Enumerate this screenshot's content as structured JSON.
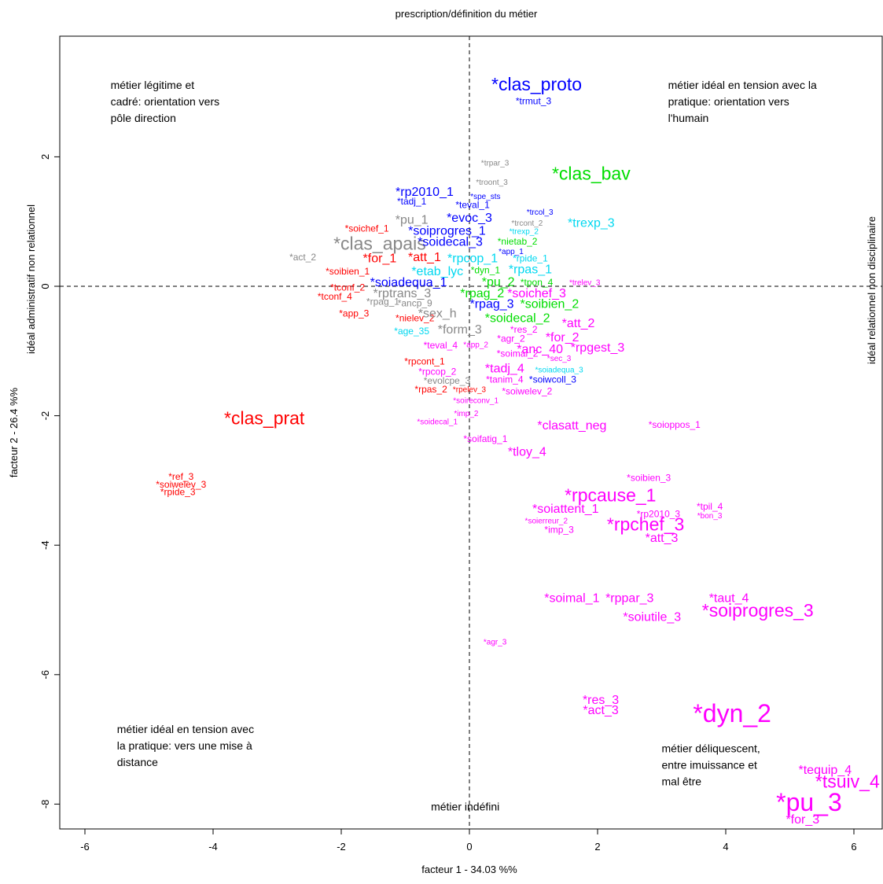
{
  "chart_data": {
    "type": "scatter",
    "title": "prescription/définition du métier",
    "xlabel": "facteur  1  - 34.03 %%",
    "ylabel": "facteur  2  - 26.4 %%",
    "right_label": "idéal relationnel non disciplinaire",
    "left_label": "idéal administratif non relationnel",
    "xlim": [
      -6.6,
      6.6
    ],
    "ylim": [
      -8.5,
      4.0
    ],
    "x_ticks": [
      -6,
      -4,
      -2,
      0,
      2,
      4,
      6
    ],
    "y_ticks": [
      -8,
      -6,
      -4,
      -2,
      0,
      2
    ],
    "x_tick_labels": [
      "-6",
      "-4",
      "-2",
      "0",
      "2",
      "4",
      "6"
    ],
    "y_tick_labels": [
      "-8",
      "-6",
      "-4",
      "-2",
      "0",
      "2"
    ],
    "grid": false,
    "colors": {
      "blue": "#0000ff",
      "green": "#00dd00",
      "gray": "#888888",
      "red": "#ff0000",
      "cyan": "#00d8f0",
      "magenta": "#ff00ff"
    },
    "annotations": [
      {
        "x": -5.6,
        "y": 3.05,
        "lines": [
          "métier légitime et",
          "cadré: orientation vers",
          "pôle direction"
        ]
      },
      {
        "x": 3.1,
        "y": 3.05,
        "lines": [
          "métier idéal en tension avec la",
          "pratique: orientation vers",
          "l'humain"
        ]
      },
      {
        "x": -5.5,
        "y": -6.9,
        "lines": [
          "métier idéal en tension avec",
          "la pratique: vers une mise à",
          "distance"
        ]
      },
      {
        "x": 3.0,
        "y": -7.2,
        "lines": [
          "métier déliquescent,",
          "entre imuissance et",
          "mal être"
        ]
      },
      {
        "x": -0.6,
        "y": -8.1,
        "lines": [
          "métier indéfini"
        ]
      }
    ],
    "points": [
      {
        "label": "*clas_proto",
        "x": 1.05,
        "y": 3.1,
        "size": 3,
        "color": "blue"
      },
      {
        "label": "*trmut_3",
        "x": 1.0,
        "y": 2.85,
        "size": 1,
        "color": "blue"
      },
      {
        "label": "*trpar_3",
        "x": 0.4,
        "y": 1.9,
        "size": 0,
        "color": "gray"
      },
      {
        "label": "*clas_bav",
        "x": 1.9,
        "y": 1.72,
        "size": 3,
        "color": "green"
      },
      {
        "label": "*troont_3",
        "x": 0.35,
        "y": 1.6,
        "size": 0,
        "color": "gray"
      },
      {
        "label": "*rp2010_1",
        "x": -0.7,
        "y": 1.45,
        "size": 2,
        "color": "blue"
      },
      {
        "label": "*spe_sts",
        "x": 0.25,
        "y": 1.38,
        "size": 0,
        "color": "blue"
      },
      {
        "label": "*tadj_1",
        "x": -0.9,
        "y": 1.3,
        "size": 1,
        "color": "blue"
      },
      {
        "label": "*teval_1",
        "x": 0.05,
        "y": 1.25,
        "size": 1,
        "color": "blue"
      },
      {
        "label": "*trcol_3",
        "x": 1.1,
        "y": 1.14,
        "size": 0,
        "color": "blue"
      },
      {
        "label": "*evoc_3",
        "x": 0.0,
        "y": 1.05,
        "size": 2,
        "color": "blue"
      },
      {
        "label": "*pu_1",
        "x": -0.9,
        "y": 1.02,
        "size": 2,
        "color": "gray"
      },
      {
        "label": "*trexp_3",
        "x": 1.9,
        "y": 0.97,
        "size": 2,
        "color": "cyan"
      },
      {
        "label": "*trcont_2",
        "x": 0.9,
        "y": 0.97,
        "size": 0,
        "color": "gray"
      },
      {
        "label": "*soichef_1",
        "x": -1.6,
        "y": 0.88,
        "size": 1,
        "color": "red"
      },
      {
        "label": "*soiprogres_1",
        "x": -0.35,
        "y": 0.85,
        "size": 2,
        "color": "blue"
      },
      {
        "label": "*trexp_2",
        "x": 0.85,
        "y": 0.84,
        "size": 0,
        "color": "cyan"
      },
      {
        "label": "*clas_apais",
        "x": -1.4,
        "y": 0.64,
        "size": 3,
        "color": "gray"
      },
      {
        "label": "*soidecal_3",
        "x": -0.3,
        "y": 0.68,
        "size": 2,
        "color": "blue"
      },
      {
        "label": "*nietab_2",
        "x": 0.75,
        "y": 0.68,
        "size": 1,
        "color": "green"
      },
      {
        "label": "*app_1",
        "x": 0.65,
        "y": 0.53,
        "size": 0,
        "color": "blue"
      },
      {
        "label": "*act_2",
        "x": -2.6,
        "y": 0.44,
        "size": 1,
        "color": "gray"
      },
      {
        "label": "*for_1",
        "x": -1.4,
        "y": 0.42,
        "size": 2,
        "color": "red"
      },
      {
        "label": "*att_1",
        "x": -0.7,
        "y": 0.44,
        "size": 2,
        "color": "red"
      },
      {
        "label": "*rpcop_1",
        "x": 0.05,
        "y": 0.42,
        "size": 2,
        "color": "cyan"
      },
      {
        "label": "*rpide_1",
        "x": 0.95,
        "y": 0.42,
        "size": 1,
        "color": "cyan"
      },
      {
        "label": "*rpas_1",
        "x": 0.95,
        "y": 0.25,
        "size": 2,
        "color": "cyan"
      },
      {
        "label": "*soibien_1",
        "x": -1.9,
        "y": 0.22,
        "size": 1,
        "color": "red"
      },
      {
        "label": "*etab_lyc",
        "x": -0.5,
        "y": 0.22,
        "size": 2,
        "color": "cyan"
      },
      {
        "label": "*dyn_1",
        "x": 0.25,
        "y": 0.24,
        "size": 1,
        "color": "green"
      },
      {
        "label": "*soiadequa_1",
        "x": -0.95,
        "y": 0.05,
        "size": 2,
        "color": "blue"
      },
      {
        "label": "*pu_2",
        "x": 0.45,
        "y": 0.06,
        "size": 2,
        "color": "green"
      },
      {
        "label": "*tpon_4",
        "x": 1.05,
        "y": 0.05,
        "size": 1,
        "color": "green"
      },
      {
        "label": "*trelev_3",
        "x": 1.8,
        "y": 0.05,
        "size": 0,
        "color": "magenta"
      },
      {
        "label": "*tconf_2",
        "x": -1.9,
        "y": -0.03,
        "size": 1,
        "color": "red"
      },
      {
        "label": "*rpag_2",
        "x": 0.2,
        "y": -0.12,
        "size": 2,
        "color": "green"
      },
      {
        "label": "*soichef_3",
        "x": 1.05,
        "y": -0.12,
        "size": 2,
        "color": "magenta"
      },
      {
        "label": "*tconf_4",
        "x": -2.1,
        "y": -0.17,
        "size": 1,
        "color": "red"
      },
      {
        "label": "*rptrans_3",
        "x": -1.05,
        "y": -0.12,
        "size": 2,
        "color": "gray"
      },
      {
        "label": "*rpag_1",
        "x": -1.35,
        "y": -0.25,
        "size": 1,
        "color": "gray"
      },
      {
        "label": "*ancp_9",
        "x": -0.85,
        "y": -0.27,
        "size": 1,
        "color": "gray"
      },
      {
        "label": "*rpag_3",
        "x": 0.35,
        "y": -0.28,
        "size": 2,
        "color": "blue"
      },
      {
        "label": "*soibien_2",
        "x": 1.25,
        "y": -0.28,
        "size": 2,
        "color": "green"
      },
      {
        "label": "*app_3",
        "x": -1.8,
        "y": -0.43,
        "size": 1,
        "color": "red"
      },
      {
        "label": "*nielev_2",
        "x": -0.85,
        "y": -0.5,
        "size": 1,
        "color": "red"
      },
      {
        "label": "*sex_h",
        "x": -0.5,
        "y": -0.43,
        "size": 2,
        "color": "gray"
      },
      {
        "label": "*soidecal_2",
        "x": 0.75,
        "y": -0.5,
        "size": 2,
        "color": "green"
      },
      {
        "label": "*att_2",
        "x": 1.7,
        "y": -0.58,
        "size": 2,
        "color": "magenta"
      },
      {
        "label": "*age_35",
        "x": -0.9,
        "y": -0.7,
        "size": 1,
        "color": "cyan"
      },
      {
        "label": "*form_3",
        "x": -0.15,
        "y": -0.68,
        "size": 2,
        "color": "gray"
      },
      {
        "label": "*res_2",
        "x": 0.85,
        "y": -0.68,
        "size": 1,
        "color": "magenta"
      },
      {
        "label": "*agr_2",
        "x": 0.65,
        "y": -0.82,
        "size": 1,
        "color": "magenta"
      },
      {
        "label": "*for_2",
        "x": 1.45,
        "y": -0.8,
        "size": 2,
        "color": "magenta"
      },
      {
        "label": "*teval_4",
        "x": -0.45,
        "y": -0.92,
        "size": 1,
        "color": "magenta"
      },
      {
        "label": "*app_2",
        "x": 0.1,
        "y": -0.91,
        "size": 0,
        "color": "magenta"
      },
      {
        "label": "*anc_40",
        "x": 1.1,
        "y": -0.98,
        "size": 2,
        "color": "magenta"
      },
      {
        "label": "*rpgest_3",
        "x": 2.0,
        "y": -0.96,
        "size": 2,
        "color": "magenta"
      },
      {
        "label": "*soimal_2",
        "x": 0.75,
        "y": -1.05,
        "size": 1,
        "color": "magenta"
      },
      {
        "label": "*sec_3",
        "x": 1.4,
        "y": -1.12,
        "size": 0,
        "color": "magenta"
      },
      {
        "label": "*rpcont_1",
        "x": -0.7,
        "y": -1.17,
        "size": 1,
        "color": "red"
      },
      {
        "label": "*tadj_4",
        "x": 0.55,
        "y": -1.28,
        "size": 2,
        "color": "magenta"
      },
      {
        "label": "*soiadequa_3",
        "x": 1.4,
        "y": -1.3,
        "size": 0,
        "color": "cyan"
      },
      {
        "label": "*rpcop_2",
        "x": -0.5,
        "y": -1.33,
        "size": 1,
        "color": "magenta"
      },
      {
        "label": "*tanim_4",
        "x": 0.55,
        "y": -1.45,
        "size": 1,
        "color": "magenta"
      },
      {
        "label": "*soiwcoll_3",
        "x": 1.3,
        "y": -1.45,
        "size": 1,
        "color": "blue"
      },
      {
        "label": "*evolcpe_3",
        "x": -0.35,
        "y": -1.47,
        "size": 1,
        "color": "gray"
      },
      {
        "label": "*rpas_2",
        "x": -0.6,
        "y": -1.6,
        "size": 1,
        "color": "red"
      },
      {
        "label": "*rpelev_3",
        "x": 0.0,
        "y": -1.6,
        "size": 0,
        "color": "red"
      },
      {
        "label": "*soiwelev_2",
        "x": 0.9,
        "y": -1.63,
        "size": 1,
        "color": "magenta"
      },
      {
        "label": "*soireconv_1",
        "x": 0.1,
        "y": -1.77,
        "size": 0,
        "color": "magenta"
      },
      {
        "label": "*imp_2",
        "x": -0.05,
        "y": -1.97,
        "size": 0,
        "color": "magenta"
      },
      {
        "label": "*soidecal_1",
        "x": -0.5,
        "y": -2.1,
        "size": 0,
        "color": "magenta"
      },
      {
        "label": "*clas_prat",
        "x": -3.2,
        "y": -2.06,
        "size": 3,
        "color": "red"
      },
      {
        "label": "*clasatt_neg",
        "x": 1.6,
        "y": -2.16,
        "size": 2,
        "color": "magenta"
      },
      {
        "label": "*soioppos_1",
        "x": 3.2,
        "y": -2.15,
        "size": 1,
        "color": "magenta"
      },
      {
        "label": "*soifatig_1",
        "x": 0.25,
        "y": -2.37,
        "size": 1,
        "color": "magenta"
      },
      {
        "label": "*tloy_4",
        "x": 0.9,
        "y": -2.57,
        "size": 2,
        "color": "magenta"
      },
      {
        "label": "*ref_3",
        "x": -4.5,
        "y": -2.95,
        "size": 1,
        "color": "red"
      },
      {
        "label": "*soiwelev_3",
        "x": -4.5,
        "y": -3.07,
        "size": 1,
        "color": "red"
      },
      {
        "label": "*rpide_3",
        "x": -4.55,
        "y": -3.19,
        "size": 1,
        "color": "red"
      },
      {
        "label": "*soibien_3",
        "x": 2.8,
        "y": -2.97,
        "size": 1,
        "color": "magenta"
      },
      {
        "label": "*rpcause_1",
        "x": 2.2,
        "y": -3.25,
        "size": 3,
        "color": "magenta"
      },
      {
        "label": "*soiattent_1",
        "x": 1.5,
        "y": -3.45,
        "size": 2,
        "color": "magenta"
      },
      {
        "label": "*tpil_4",
        "x": 3.75,
        "y": -3.41,
        "size": 1,
        "color": "magenta"
      },
      {
        "label": "*rp2010_3",
        "x": 2.95,
        "y": -3.53,
        "size": 1,
        "color": "magenta"
      },
      {
        "label": "*bon_3",
        "x": 3.75,
        "y": -3.55,
        "size": 0,
        "color": "magenta"
      },
      {
        "label": "*soierreur_2",
        "x": 1.2,
        "y": -3.63,
        "size": 0,
        "color": "magenta"
      },
      {
        "label": "*rpchef_3",
        "x": 2.75,
        "y": -3.7,
        "size": 3,
        "color": "magenta"
      },
      {
        "label": "*imp_3",
        "x": 1.4,
        "y": -3.77,
        "size": 1,
        "color": "magenta"
      },
      {
        "label": "*att_3",
        "x": 3.0,
        "y": -3.9,
        "size": 2,
        "color": "magenta"
      },
      {
        "label": "*soimal_1",
        "x": 1.6,
        "y": -4.83,
        "size": 2,
        "color": "magenta"
      },
      {
        "label": "*rppar_3",
        "x": 2.5,
        "y": -4.83,
        "size": 2,
        "color": "magenta"
      },
      {
        "label": "*taut_4",
        "x": 4.05,
        "y": -4.83,
        "size": 2,
        "color": "magenta"
      },
      {
        "label": "*soiprogres_3",
        "x": 4.5,
        "y": -5.03,
        "size": 3,
        "color": "magenta"
      },
      {
        "label": "*soiutile_3",
        "x": 2.85,
        "y": -5.12,
        "size": 2,
        "color": "magenta"
      },
      {
        "label": "*agr_3",
        "x": 0.4,
        "y": -5.5,
        "size": 0,
        "color": "magenta"
      },
      {
        "label": "*res_3",
        "x": 2.05,
        "y": -6.4,
        "size": 2,
        "color": "magenta"
      },
      {
        "label": "*act_3",
        "x": 2.05,
        "y": -6.56,
        "size": 2,
        "color": "magenta"
      },
      {
        "label": "*dyn_2",
        "x": 4.1,
        "y": -6.63,
        "size": 4,
        "color": "magenta"
      },
      {
        "label": "*tequip_4",
        "x": 5.55,
        "y": -7.48,
        "size": 2,
        "color": "magenta"
      },
      {
        "label": "*tsuiv_4",
        "x": 5.9,
        "y": -7.67,
        "size": 3,
        "color": "magenta"
      },
      {
        "label": "*pu_3",
        "x": 5.3,
        "y": -8.0,
        "size": 4,
        "color": "magenta"
      },
      {
        "label": "*for_3",
        "x": 5.2,
        "y": -8.25,
        "size": 2,
        "color": "magenta"
      }
    ]
  }
}
